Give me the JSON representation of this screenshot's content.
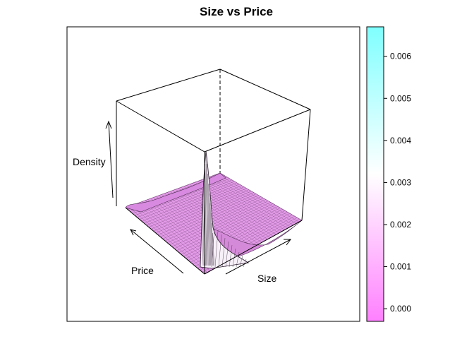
{
  "chart_data": {
    "type": "surface",
    "title": "Size vs Price",
    "xlabel": "Price",
    "ylabel": "Size",
    "zlabel": "Density",
    "zlim": [
      -0.0003,
      0.0067
    ],
    "surface": {
      "baseline_density": 0.0001,
      "peak_density": 0.0067,
      "peak_location": "corner of low Size and high Price"
    },
    "colorkey": {
      "ticks": [
        "0.000",
        "0.001",
        "0.002",
        "0.003",
        "0.004",
        "0.005",
        "0.006"
      ],
      "tick_values": [
        0.0,
        0.001,
        0.002,
        0.003,
        0.004,
        0.005,
        0.006
      ],
      "range": [
        -0.0003,
        0.0067
      ],
      "colors": {
        "low": "#ff80ff",
        "mid": "#ffffff",
        "high": "#80ffff"
      }
    },
    "box": true,
    "legend": "right"
  }
}
